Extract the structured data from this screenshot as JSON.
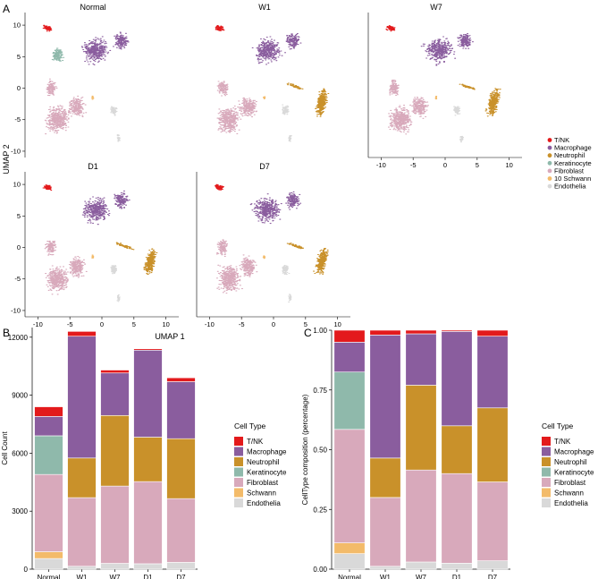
{
  "panel_labels": {
    "a": "A",
    "b": "B",
    "c": "C"
  },
  "umap": {
    "axis_x_label": "UMAP 1",
    "axis_y_label": "UMAP 2",
    "x_ticks": [
      "-10",
      "-5",
      "0",
      "5",
      "10"
    ],
    "y_ticks": [
      "10",
      "5",
      "0",
      "-5",
      "-10"
    ],
    "x_range": [
      -12,
      12
    ],
    "y_range": [
      -11,
      12
    ],
    "panels": [
      {
        "title": "Normal",
        "show_neutrophil": false,
        "show_keratinocyte": true,
        "show_schwann": true
      },
      {
        "title": "W1",
        "show_neutrophil": true,
        "show_keratinocyte": false,
        "show_schwann": true
      },
      {
        "title": "W7",
        "show_neutrophil": true,
        "show_keratinocyte": false,
        "show_schwann": true
      },
      {
        "title": "D1",
        "show_neutrophil": true,
        "show_keratinocyte": false,
        "show_schwann": true
      },
      {
        "title": "D7",
        "show_neutrophil": true,
        "show_keratinocyte": false,
        "show_schwann": true
      }
    ],
    "legend": [
      {
        "label": "T/NK",
        "color": "#e31a1c"
      },
      {
        "label": "Macrophage",
        "color": "#8a5d9e"
      },
      {
        "label": "Neutrophil",
        "color": "#c9912a"
      },
      {
        "label": "Keratinocyte",
        "color": "#8fb9ab"
      },
      {
        "label": "Fibroblast",
        "color": "#d8a9bb"
      },
      {
        "label": "10 Schwann",
        "color": "#f3bb6a"
      },
      {
        "label": "Endothelia",
        "color": "#d9d9d9"
      }
    ]
  },
  "chart_data": [
    {
      "type": "bar",
      "stacked": true,
      "title": "",
      "xlabel": "",
      "ylabel": "Cell Count",
      "ylim": [
        0,
        12500
      ],
      "y_ticks": [
        "0",
        "3000",
        "6000",
        "9000",
        "12000"
      ],
      "y_tick_values": [
        0,
        3000,
        6000,
        9000,
        12000
      ],
      "legend_title": "Cell Type",
      "categories": [
        "Normal",
        "W1",
        "W7",
        "D1",
        "D7"
      ],
      "series": [
        {
          "name": "Endothelia",
          "color": "#d9d9d9",
          "values": [
            550,
            150,
            300,
            280,
            350
          ]
        },
        {
          "name": "Schwann",
          "color": "#f3bb6a",
          "values": [
            350,
            0,
            0,
            0,
            0
          ]
        },
        {
          "name": "Fibroblast",
          "color": "#d8a9bb",
          "values": [
            4000,
            3550,
            4000,
            4250,
            3300
          ]
        },
        {
          "name": "Keratinocyte",
          "color": "#8fb9ab",
          "values": [
            2000,
            0,
            0,
            0,
            0
          ]
        },
        {
          "name": "Neutrophil",
          "color": "#c9912a",
          "values": [
            0,
            2050,
            3650,
            2300,
            3100
          ]
        },
        {
          "name": "Macrophage",
          "color": "#8a5d9e",
          "values": [
            1000,
            6300,
            2200,
            4500,
            2950
          ]
        },
        {
          "name": "T/NK",
          "color": "#e31a1c",
          "values": [
            500,
            250,
            150,
            70,
            200
          ]
        }
      ],
      "legend": [
        "T/NK",
        "Macrophage",
        "Neutrophil",
        "Keratinocyte",
        "Fibroblast",
        "Schwann",
        "Endothelia"
      ]
    },
    {
      "type": "bar",
      "stacked": true,
      "title": "",
      "xlabel": "",
      "ylabel": "CellType composition (percentage)",
      "ylim": [
        0,
        1
      ],
      "y_ticks": [
        "0.00",
        "0.25",
        "0.50",
        "0.75",
        "1.00"
      ],
      "y_tick_values": [
        0,
        0.25,
        0.5,
        0.75,
        1
      ],
      "legend_title": "Cell Type",
      "categories": [
        "Normal",
        "W1",
        "W7",
        "D1",
        "D7"
      ],
      "series": [
        {
          "name": "Endothelia",
          "color": "#d9d9d9",
          "values": [
            0.065,
            0.012,
            0.03,
            0.025,
            0.035
          ]
        },
        {
          "name": "Schwann",
          "color": "#f3bb6a",
          "values": [
            0.045,
            0.0,
            0.0,
            0.0,
            0.0
          ]
        },
        {
          "name": "Fibroblast",
          "color": "#d8a9bb",
          "values": [
            0.475,
            0.288,
            0.385,
            0.375,
            0.33
          ]
        },
        {
          "name": "Keratinocyte",
          "color": "#8fb9ab",
          "values": [
            0.24,
            0.0,
            0.0,
            0.0,
            0.0
          ]
        },
        {
          "name": "Neutrophil",
          "color": "#c9912a",
          "values": [
            0.0,
            0.165,
            0.355,
            0.2,
            0.31
          ]
        },
        {
          "name": "Macrophage",
          "color": "#8a5d9e",
          "values": [
            0.125,
            0.515,
            0.215,
            0.395,
            0.3
          ]
        },
        {
          "name": "T/NK",
          "color": "#e31a1c",
          "values": [
            0.05,
            0.02,
            0.015,
            0.005,
            0.025
          ]
        }
      ],
      "legend": [
        "T/NK",
        "Macrophage",
        "Neutrophil",
        "Keratinocyte",
        "Fibroblast",
        "Schwann",
        "Endothelia"
      ]
    }
  ]
}
